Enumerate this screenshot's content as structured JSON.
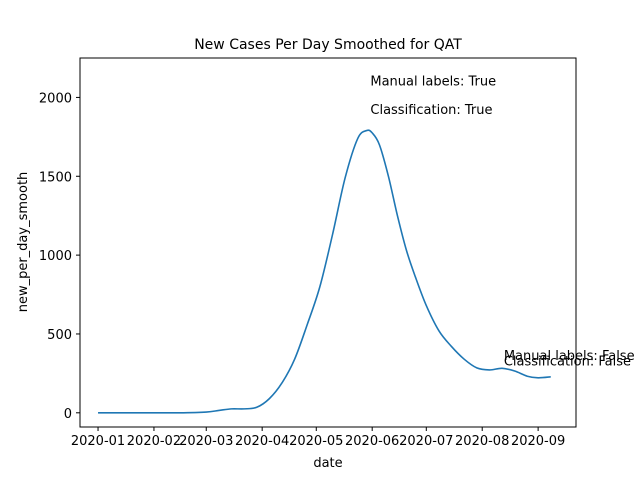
{
  "chart_data": {
    "type": "line",
    "title": "New Cases Per Day Smoothed for QAT",
    "xlabel": "date",
    "ylabel": "new_per_day_smooth",
    "xlim": [
      "2019-12-22",
      "2020-09-22"
    ],
    "ylim": [
      -90,
      2250
    ],
    "x_ticks": [
      "2020-01-01",
      "2020-02-01",
      "2020-03-01",
      "2020-04-01",
      "2020-05-01",
      "2020-06-01",
      "2020-07-01",
      "2020-08-01",
      "2020-09-01"
    ],
    "x_tick_labels": [
      "2020-01",
      "2020-02",
      "2020-03",
      "2020-04",
      "2020-05",
      "2020-06",
      "2020-07",
      "2020-08",
      "2020-09"
    ],
    "y_ticks": [
      0,
      500,
      1000,
      1500,
      2000
    ],
    "y_tick_labels": [
      "0",
      "500",
      "1000",
      "1500",
      "2000"
    ],
    "grid": false,
    "line_color": "#1f77b4",
    "series": [
      {
        "x": [
          "2020-01-01",
          "2020-01-15",
          "2020-02-01",
          "2020-02-15",
          "2020-03-01",
          "2020-03-08",
          "2020-03-15",
          "2020-03-22",
          "2020-03-29",
          "2020-04-05",
          "2020-04-12",
          "2020-04-19",
          "2020-04-26",
          "2020-05-03",
          "2020-05-10",
          "2020-05-17",
          "2020-05-24",
          "2020-05-29",
          "2020-06-01",
          "2020-06-05",
          "2020-06-10",
          "2020-06-15",
          "2020-06-20",
          "2020-06-25",
          "2020-07-01",
          "2020-07-08",
          "2020-07-15",
          "2020-07-22",
          "2020-07-29",
          "2020-08-05",
          "2020-08-12",
          "2020-08-19",
          "2020-08-26",
          "2020-09-01",
          "2020-09-08"
        ],
        "values": [
          0,
          0,
          0,
          0,
          5,
          15,
          25,
          25,
          35,
          90,
          190,
          340,
          560,
          800,
          1130,
          1490,
          1740,
          1790,
          1775,
          1700,
          1500,
          1250,
          1030,
          860,
          680,
          520,
          420,
          340,
          285,
          272,
          282,
          265,
          232,
          222,
          228
        ]
      }
    ],
    "annotations": [
      {
        "text": "Manual labels: True",
        "x": "2020-05-31",
        "y": 2075
      },
      {
        "text": "Classification: True",
        "x": "2020-05-31",
        "y": 1895
      },
      {
        "text": "Manual labels: False",
        "x": "2020-08-13",
        "y": 335
      },
      {
        "text": "Classification: False",
        "x": "2020-08-13",
        "y": 300
      }
    ]
  }
}
